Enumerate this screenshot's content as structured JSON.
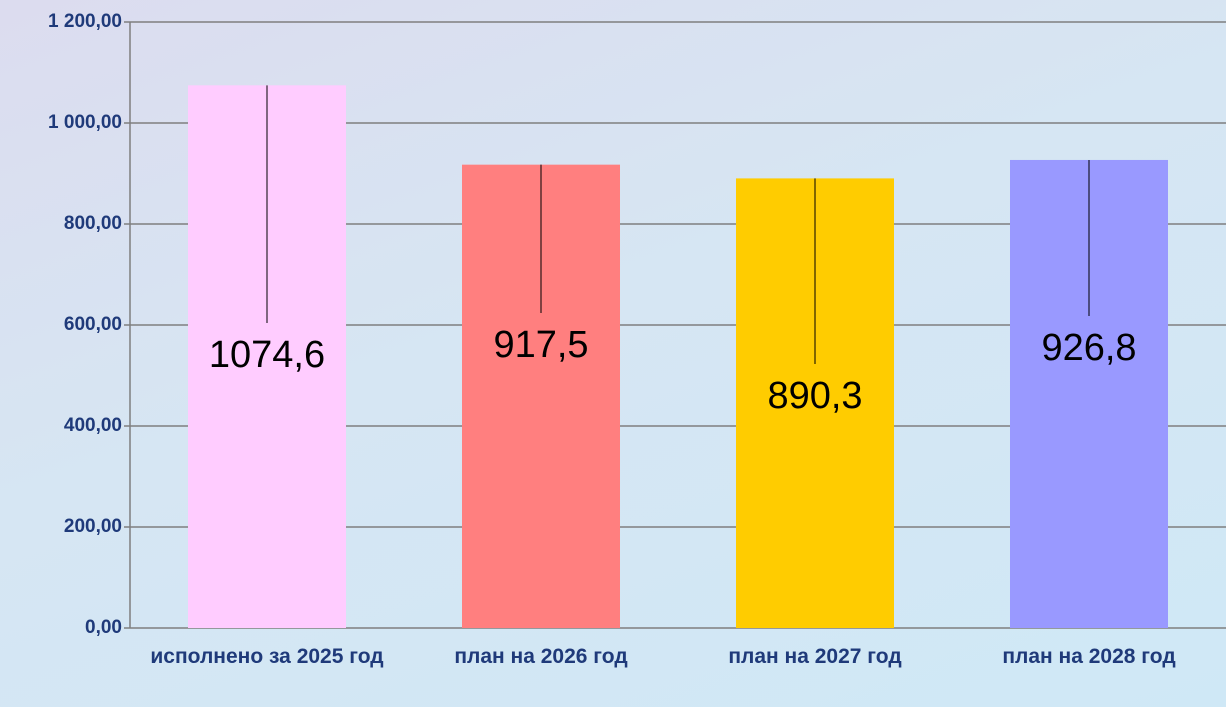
{
  "chart_data": {
    "type": "bar",
    "categories": [
      "исполнено за 2025 год",
      "план на 2026 год",
      "план на 2027 год",
      "план на 2028 год"
    ],
    "values": [
      1074.6,
      917.5,
      890.3,
      926.8
    ],
    "value_labels": [
      "1074,6",
      "917,5",
      "890,3",
      "926,8"
    ],
    "colors": [
      "#ffccff",
      "#ff7f7f",
      "#ffcc00",
      "#9999ff"
    ],
    "ylim": [
      0,
      1200
    ],
    "yticks": [
      {
        "value": 0,
        "label": "0,00"
      },
      {
        "value": 200,
        "label": "200,00"
      },
      {
        "value": 400,
        "label": "400,00"
      },
      {
        "value": 600,
        "label": "600,00"
      },
      {
        "value": 800,
        "label": "800,00"
      },
      {
        "value": 1000,
        "label": "1 000,00"
      },
      {
        "value": 1200,
        "label": "1 200,00"
      }
    ],
    "grid": true
  }
}
